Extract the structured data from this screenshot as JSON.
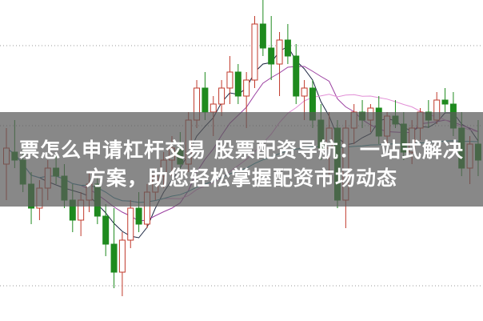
{
  "title": {
    "line1": "票怎么申请杠杆交易 股票配资导航：一站式解决",
    "line2": "方案，助您轻松掌握配资市场动态"
  },
  "chart_data": {
    "type": "candlestick",
    "title": "",
    "xlabel": "",
    "ylabel": "",
    "grid": "horizontal-dotted",
    "colors": {
      "up": "#c0392b",
      "down": "#1e8a1e",
      "ma5": "#1a2440",
      "ma10": "#9b3fa0",
      "ma20": "#e28fd6",
      "ma60": "#2f8f9a"
    },
    "candles_ohlc": [
      [
        195,
        240,
        150,
        215
      ],
      [
        210,
        250,
        190,
        200
      ],
      [
        200,
        215,
        160,
        170
      ],
      [
        170,
        185,
        120,
        140
      ],
      [
        140,
        175,
        125,
        165
      ],
      [
        165,
        200,
        150,
        190
      ],
      [
        190,
        210,
        170,
        180
      ],
      [
        180,
        195,
        140,
        150
      ],
      [
        150,
        170,
        110,
        125
      ],
      [
        125,
        160,
        105,
        150
      ],
      [
        150,
        185,
        135,
        170
      ],
      [
        170,
        180,
        120,
        130
      ],
      [
        130,
        145,
        80,
        95
      ],
      [
        95,
        140,
        40,
        60
      ],
      [
        60,
        110,
        30,
        100
      ],
      [
        100,
        150,
        90,
        140
      ],
      [
        140,
        160,
        110,
        120
      ],
      [
        120,
        170,
        115,
        160
      ],
      [
        160,
        190,
        150,
        180
      ],
      [
        180,
        210,
        165,
        200
      ],
      [
        200,
        230,
        180,
        215
      ],
      [
        215,
        235,
        190,
        195
      ],
      [
        195,
        260,
        185,
        250
      ],
      [
        250,
        300,
        240,
        290
      ],
      [
        290,
        310,
        250,
        260
      ],
      [
        260,
        280,
        230,
        270
      ],
      [
        270,
        300,
        255,
        290
      ],
      [
        290,
        330,
        270,
        310
      ],
      [
        310,
        320,
        270,
        280
      ],
      [
        280,
        310,
        240,
        300
      ],
      [
        300,
        380,
        290,
        370
      ],
      [
        370,
        400,
        330,
        340
      ],
      [
        340,
        380,
        300,
        320
      ],
      [
        320,
        360,
        280,
        350
      ],
      [
        350,
        370,
        320,
        330
      ],
      [
        330,
        345,
        270,
        280
      ],
      [
        280,
        300,
        250,
        290
      ],
      [
        290,
        300,
        240,
        250
      ],
      [
        250,
        270,
        200,
        215
      ],
      [
        215,
        260,
        180,
        240
      ],
      [
        240,
        250,
        140,
        150
      ],
      [
        150,
        250,
        115,
        240
      ],
      [
        240,
        270,
        220,
        260
      ],
      [
        260,
        275,
        240,
        250
      ],
      [
        250,
        270,
        235,
        265
      ],
      [
        265,
        280,
        220,
        230
      ],
      [
        230,
        260,
        215,
        255
      ],
      [
        255,
        275,
        240,
        245
      ],
      [
        245,
        260,
        200,
        210
      ],
      [
        210,
        250,
        195,
        240
      ],
      [
        240,
        265,
        225,
        260
      ],
      [
        260,
        275,
        240,
        250
      ],
      [
        250,
        285,
        245,
        275
      ],
      [
        275,
        290,
        260,
        270
      ],
      [
        270,
        285,
        230,
        240
      ],
      [
        240,
        260,
        180,
        190
      ],
      [
        190,
        230,
        170,
        220
      ],
      [
        220,
        250,
        180,
        200
      ]
    ],
    "moving_averages": [
      5,
      10,
      20,
      60
    ]
  }
}
